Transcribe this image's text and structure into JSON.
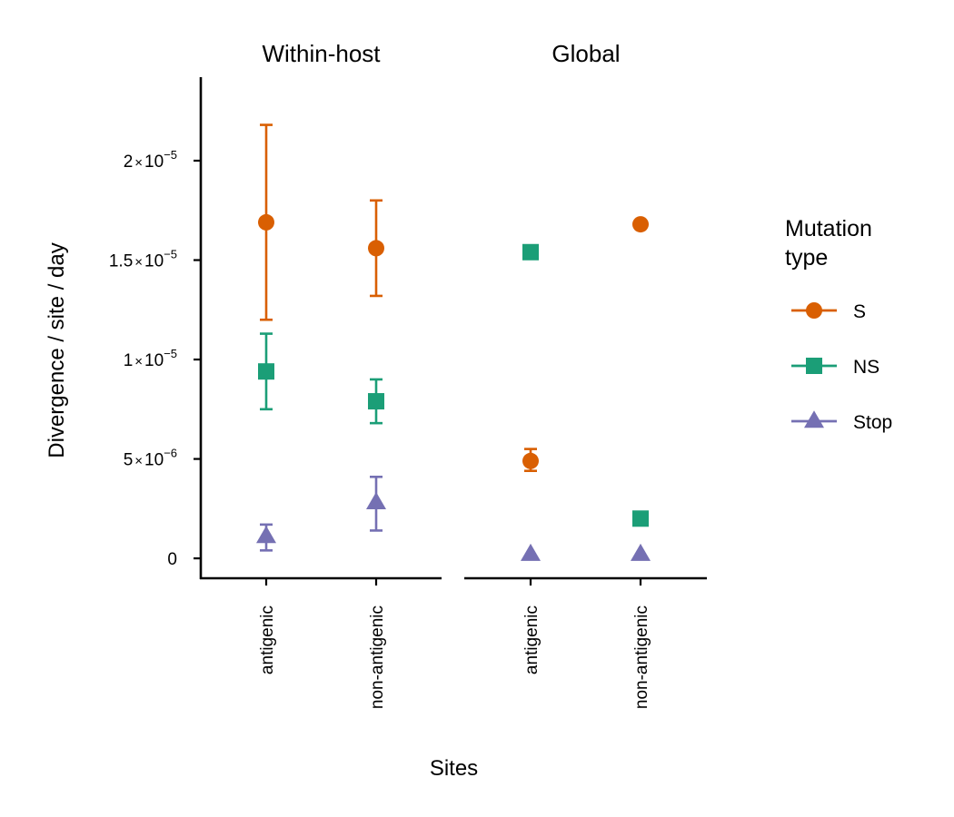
{
  "chart_data": {
    "type": "scatter",
    "subtype": "point-with-errorbars",
    "ylabel": "Divergence / site / day",
    "xlabel": "Sites",
    "ylim": [
      -1e-06,
      2.42e-05
    ],
    "yticks": [
      {
        "value": 0,
        "mantissa": "0",
        "exponent": ""
      },
      {
        "value": 5e-06,
        "mantissa": "5",
        "exponent": "−6"
      },
      {
        "value": 1e-05,
        "mantissa": "1",
        "exponent": "−5"
      },
      {
        "value": 1.5e-05,
        "mantissa": "1.5",
        "exponent": "−5"
      },
      {
        "value": 2e-05,
        "mantissa": "2",
        "exponent": "−5"
      }
    ],
    "times_sign": "×",
    "base": "10",
    "categories": [
      "antigenic",
      "non-antigenic"
    ],
    "legend": {
      "title_lines": [
        "Mutation",
        "type"
      ],
      "position": "right"
    },
    "series": [
      {
        "name": "S",
        "color": "#D95F02",
        "shape": "circle"
      },
      {
        "name": "NS",
        "color": "#1B9E77",
        "shape": "square"
      },
      {
        "name": "Stop",
        "color": "#7570B3",
        "shape": "triangle"
      }
    ],
    "facets": [
      {
        "title": "Within-host",
        "points": [
          {
            "series": "S",
            "category": "antigenic",
            "y": 1.69e-05,
            "ymin": 1.2e-05,
            "ymax": 2.18e-05
          },
          {
            "series": "S",
            "category": "non-antigenic",
            "y": 1.56e-05,
            "ymin": 1.32e-05,
            "ymax": 1.8e-05
          },
          {
            "series": "NS",
            "category": "antigenic",
            "y": 9.4e-06,
            "ymin": 7.5e-06,
            "ymax": 1.13e-05
          },
          {
            "series": "NS",
            "category": "non-antigenic",
            "y": 7.9e-06,
            "ymin": 6.8e-06,
            "ymax": 9e-06
          },
          {
            "series": "Stop",
            "category": "antigenic",
            "y": 1.1e-06,
            "ymin": 4e-07,
            "ymax": 1.7e-06
          },
          {
            "series": "Stop",
            "category": "non-antigenic",
            "y": 2.8e-06,
            "ymin": 1.4e-06,
            "ymax": 4.1e-06
          }
        ]
      },
      {
        "title": "Global",
        "points": [
          {
            "series": "S",
            "category": "antigenic",
            "y": 4.9e-06,
            "ymin": 4.4e-06,
            "ymax": 5.5e-06
          },
          {
            "series": "S",
            "category": "non-antigenic",
            "y": 1.68e-05
          },
          {
            "series": "NS",
            "category": "antigenic",
            "y": 1.54e-05
          },
          {
            "series": "NS",
            "category": "non-antigenic",
            "y": 2e-06
          },
          {
            "series": "Stop",
            "category": "antigenic",
            "y": 2e-07
          },
          {
            "series": "Stop",
            "category": "non-antigenic",
            "y": 2e-07
          }
        ]
      }
    ]
  }
}
